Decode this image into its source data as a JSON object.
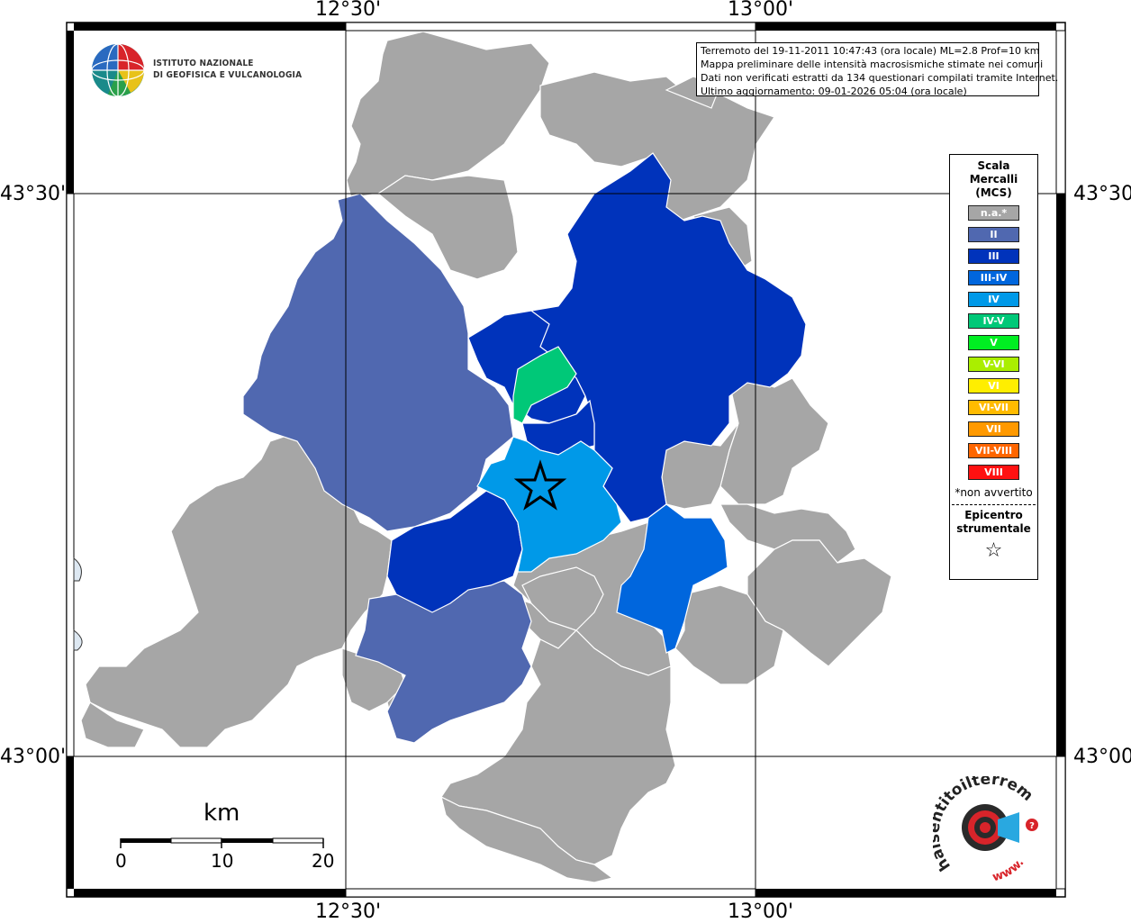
{
  "map": {
    "axes": {
      "top_ticks": [
        "12°30'",
        "13°00'"
      ],
      "bottom_ticks": [
        "12°30'",
        "13°00'"
      ],
      "left_ticks": [
        "43°30'",
        "43°00'"
      ],
      "right_ticks": [
        "43°30'",
        "43°00'"
      ]
    },
    "info_box": {
      "lines": [
        "Terremoto del 19-11-2011 10:47:43 (ora locale) ML=2.8 Prof=10 km",
        "Mappa preliminare delle intensità macrosismiche stimate nei comuni",
        "Dati non verificati estratti da 134 questionari compilati tramite Internet.",
        "Ultimo aggiornamento: 09-01-2026 05:04 (ora locale)"
      ]
    },
    "legend": {
      "title_lines": [
        "Scala",
        "Mercalli",
        "(MCS)"
      ],
      "items": [
        {
          "label": "n.a.*",
          "color": "#a6a6a6"
        },
        {
          "label": "II",
          "color": "#5068b0"
        },
        {
          "label": "III",
          "color": "#0033bb"
        },
        {
          "label": "III-IV",
          "color": "#0066dd"
        },
        {
          "label": "IV",
          "color": "#0099e8"
        },
        {
          "label": "IV-V",
          "color": "#00c878"
        },
        {
          "label": "V",
          "color": "#00ee22"
        },
        {
          "label": "V-VI",
          "color": "#aaee00"
        },
        {
          "label": "VI",
          "color": "#ffee00"
        },
        {
          "label": "VI-VII",
          "color": "#ffbb00"
        },
        {
          "label": "VII",
          "color": "#ff9900"
        },
        {
          "label": "VII-VIII",
          "color": "#ff6600"
        },
        {
          "label": "VIII",
          "color": "#ff1111"
        }
      ],
      "note": "*non avvertito",
      "epicenter_lines": [
        "Epicentro",
        "strumentale"
      ],
      "epicenter_symbol": "☆"
    },
    "ingv_logo": {
      "lines": [
        "ISTITUTO NAZIONALE",
        "DI GEOFISICA E VULCANOLOGIA"
      ]
    },
    "scalebar": {
      "unit": "km",
      "ticks": [
        "0",
        "10",
        "20"
      ]
    },
    "hst_logo": {
      "text_main": "haisentitoilterremoto.it",
      "text_www": "www.",
      "question": "?"
    },
    "colors": {
      "na": "#a6a6a6",
      "II": "#5068b0",
      "III": "#0033bb",
      "III_IV": "#0066dd",
      "IV": "#0099e8",
      "IV_V": "#00c878",
      "sea": "#dde8f2"
    }
  }
}
